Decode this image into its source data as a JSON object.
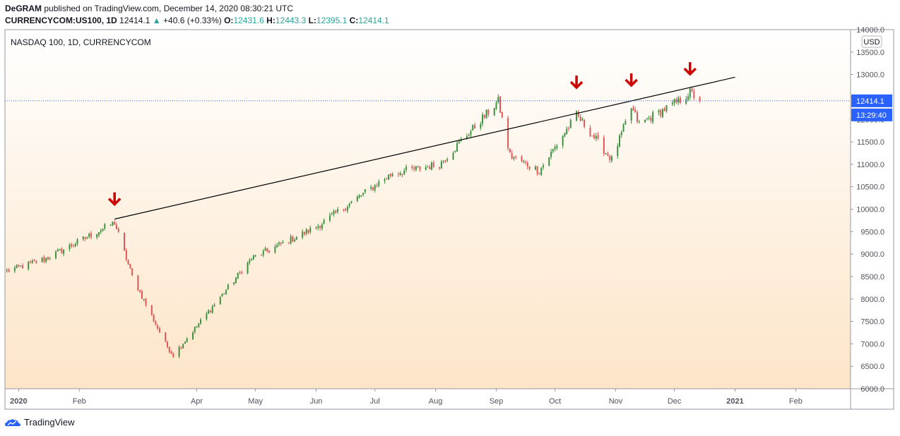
{
  "header": {
    "author": "DeGRAM",
    "published_text": "published on TradingView.com, December 14, 2020 08:30:21 UTC",
    "symbol": "CURRENCYCOM:US100, 1D",
    "last": "12414.1",
    "up_symbol": "▲",
    "change": "+40.6 (+0.33%)",
    "o_label": "O:",
    "o_value": "12431.6",
    "h_label": "H:",
    "h_value": "12443.3",
    "l_label": "L:",
    "l_value": "12395.1",
    "c_label": "C:",
    "c_value": "12414.1"
  },
  "footer": {
    "brand": "TradingView"
  },
  "colors": {
    "up": "#26a69a",
    "candle_up": "#388e3c",
    "candle_down": "#e05353",
    "arrow": "#cc0000",
    "price_badge": "#2962ff",
    "bg_top": "#ffffff",
    "bg_bottom": "#fde5c8"
  },
  "chart_data": {
    "type": "candlestick",
    "title": "NASDAQ 100, 1D, CURRENCYCOM",
    "currency": "USD",
    "ylim": [
      6000,
      14000
    ],
    "y_ticks": [
      "14000.0",
      "13500.0",
      "13000.0",
      "12500.0",
      "12000.0",
      "11500.0",
      "11000.0",
      "10500.0",
      "10000.0",
      "9500.0",
      "9000.0",
      "8500.0",
      "8000.0",
      "7500.0",
      "7000.0",
      "6500.0",
      "6000.0"
    ],
    "x_ticks": [
      {
        "label": "2020",
        "date": "2020-01-01",
        "bold": true
      },
      {
        "label": "Feb",
        "date": "2020-02-01"
      },
      {
        "label": "Apr",
        "date": "2020-04-01"
      },
      {
        "label": "May",
        "date": "2020-05-01"
      },
      {
        "label": "Jun",
        "date": "2020-06-01"
      },
      {
        "label": "Jul",
        "date": "2020-07-01"
      },
      {
        "label": "Aug",
        "date": "2020-08-01"
      },
      {
        "label": "Sep",
        "date": "2020-09-01"
      },
      {
        "label": "Oct",
        "date": "2020-10-01"
      },
      {
        "label": "Nov",
        "date": "2020-11-01"
      },
      {
        "label": "Dec",
        "date": "2020-12-01"
      },
      {
        "label": "2021",
        "date": "2021-01-01",
        "bold": true
      },
      {
        "label": "Feb",
        "date": "2021-02-01"
      }
    ],
    "x_range": [
      "2019-12-25",
      "2021-03-01"
    ],
    "anchors": [
      {
        "date": "2019-12-26",
        "close": 8620
      },
      {
        "date": "2020-01-15",
        "close": 8900
      },
      {
        "date": "2020-02-19",
        "close": 9700
      },
      {
        "date": "2020-02-28",
        "close": 8500
      },
      {
        "date": "2020-03-16",
        "close": 7000
      },
      {
        "date": "2020-03-20",
        "close": 6750
      },
      {
        "date": "2020-04-03",
        "close": 7500
      },
      {
        "date": "2020-04-29",
        "close": 8900
      },
      {
        "date": "2020-06-01",
        "close": 9600
      },
      {
        "date": "2020-07-10",
        "close": 10800
      },
      {
        "date": "2020-08-03",
        "close": 11000
      },
      {
        "date": "2020-09-02",
        "close": 12400
      },
      {
        "date": "2020-09-08",
        "close": 11200
      },
      {
        "date": "2020-09-23",
        "close": 10850
      },
      {
        "date": "2020-10-12",
        "close": 12100
      },
      {
        "date": "2020-10-30",
        "close": 11100
      },
      {
        "date": "2020-11-09",
        "close": 12250
      },
      {
        "date": "2020-11-13",
        "close": 11900
      },
      {
        "date": "2020-12-03",
        "close": 12400
      },
      {
        "date": "2020-12-09",
        "close": 12600
      },
      {
        "date": "2020-12-14",
        "close": 12414.1
      }
    ],
    "trendline": {
      "from": {
        "date": "2020-02-19",
        "value": 9780
      },
      "to": {
        "date": "2021-01-01",
        "value": 12940
      }
    },
    "last_price": {
      "value": 12414.1,
      "label": "12414.1",
      "countdown": "13:29:40"
    },
    "markers": [
      {
        "type": "arrow-down",
        "date": "2020-02-19",
        "value": 10250
      },
      {
        "type": "arrow-down",
        "date": "2020-10-12",
        "value": 12850
      },
      {
        "type": "arrow-down",
        "date": "2020-11-09",
        "value": 12900
      },
      {
        "type": "arrow-down",
        "date": "2020-12-09",
        "value": 13150
      }
    ]
  }
}
